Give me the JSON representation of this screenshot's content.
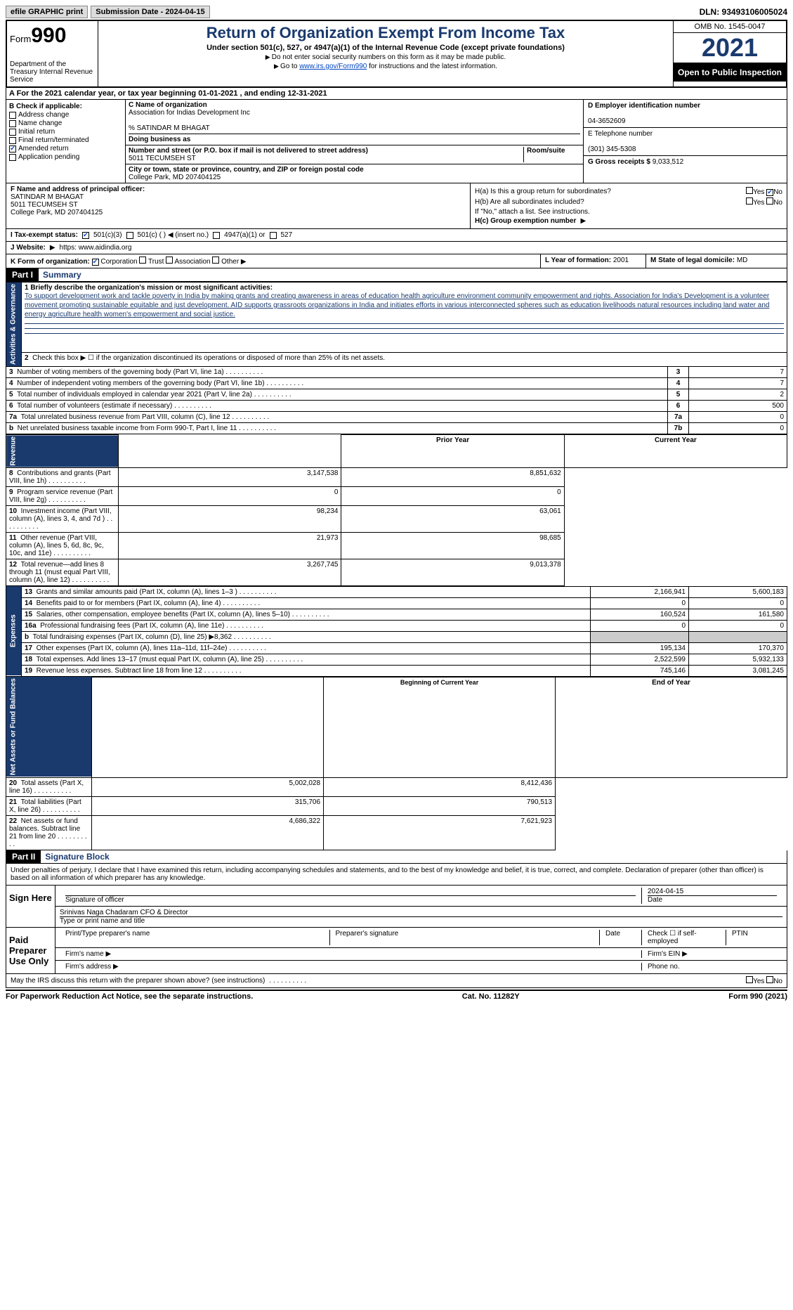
{
  "topbar": {
    "efile": "efile GRAPHIC print",
    "submission": "Submission Date - 2024-04-15",
    "dln": "DLN: 93493106005024"
  },
  "header": {
    "form_label": "Form",
    "form_no": "990",
    "dept": "Department of the Treasury Internal Revenue Service",
    "title": "Return of Organization Exempt From Income Tax",
    "sub": "Under section 501(c), 527, or 4947(a)(1) of the Internal Revenue Code (except private foundations)",
    "note1": "Do not enter social security numbers on this form as it may be made public.",
    "note2_pre": "Go to ",
    "note2_link": "www.irs.gov/Form990",
    "note2_post": " for instructions and the latest information.",
    "omb": "OMB No. 1545-0047",
    "year": "2021",
    "open": "Open to Public Inspection"
  },
  "row_a": "A For the 2021 calendar year, or tax year beginning 01-01-2021  , and ending 12-31-2021",
  "section_b": {
    "label": "B Check if applicable:",
    "items": [
      "Address change",
      "Name change",
      "Initial return",
      "Final return/terminated",
      "Amended return",
      "Application pending"
    ],
    "checked_idx": 4
  },
  "section_c": {
    "name_label": "C Name of organization",
    "name": "Association for Indias Development Inc",
    "care_of": "% SATINDAR M BHAGAT",
    "dba_label": "Doing business as",
    "street_label": "Number and street (or P.O. box if mail is not delivered to street address)",
    "room_label": "Room/suite",
    "street": "5011 TECUMSEH ST",
    "city_label": "City or town, state or province, country, and ZIP or foreign postal code",
    "city": "College Park, MD  207404125"
  },
  "section_d": {
    "ein_label": "D Employer identification number",
    "ein": "04-3652609",
    "tel_label": "E Telephone number",
    "tel": "(301) 345-5308",
    "gross_label": "G Gross receipts $",
    "gross": "9,033,512"
  },
  "section_f": {
    "label": "F  Name and address of principal officer:",
    "name": "SATINDAR M BHAGAT",
    "addr1": "5011 TECUMSEH ST",
    "addr2": "College Park, MD  207404125"
  },
  "section_h": {
    "ha": "H(a)  Is this a group return for subordinates?",
    "ha_yes": "Yes",
    "ha_no": "No",
    "hb": "H(b)  Are all subordinates included?",
    "hb_note": "If \"No,\" attach a list. See instructions.",
    "hc": "H(c)  Group exemption number"
  },
  "section_i": {
    "label": "I  Tax-exempt status:",
    "opts": [
      "501(c)(3)",
      "501(c) (  ) ◀ (insert no.)",
      "4947(a)(1) or",
      "527"
    ]
  },
  "section_j": {
    "label": "J  Website:",
    "val": "https: www.aidindia.org"
  },
  "section_k": {
    "label": "K Form of organization:",
    "opts": [
      "Corporation",
      "Trust",
      "Association",
      "Other"
    ]
  },
  "section_l": {
    "label": "L Year of formation:",
    "val": "2001"
  },
  "section_m": {
    "label": "M State of legal domicile:",
    "val": "MD"
  },
  "part1": {
    "hdr": "Part I",
    "title": "Summary",
    "line1_label": "1 Briefly describe the organization's mission or most significant activities:",
    "mission": "To support development work and tackle poverty in India by making grants and creating awareness in areas of education health agriculture environment community empowerment and rights. Association for India's Development is a volunteer movement promoting sustainable equitable and just development. AID supports grassroots organizations in India and initiates efforts in various interconnected spheres such as education livelihoods natural resources including land water and energy agriculture health women's empowerment and social justice.",
    "side_ag": "Activities & Governance",
    "line2": "Check this box ▶ ☐  if the organization discontinued its operations or disposed of more than 25% of its net assets.",
    "rows_ag": [
      {
        "n": "3",
        "t": "Number of voting members of the governing body (Part VI, line 1a)",
        "b": "3",
        "v": "7"
      },
      {
        "n": "4",
        "t": "Number of independent voting members of the governing body (Part VI, line 1b)",
        "b": "4",
        "v": "7"
      },
      {
        "n": "5",
        "t": "Total number of individuals employed in calendar year 2021 (Part V, line 2a)",
        "b": "5",
        "v": "2"
      },
      {
        "n": "6",
        "t": "Total number of volunteers (estimate if necessary)",
        "b": "6",
        "v": "500"
      },
      {
        "n": "7a",
        "t": "Total unrelated business revenue from Part VIII, column (C), line 12",
        "b": "7a",
        "v": "0"
      },
      {
        "n": "b",
        "t": "Net unrelated business taxable income from Form 990-T, Part I, line 11",
        "b": "7b",
        "v": "0"
      }
    ],
    "side_rev": "Revenue",
    "col_py": "Prior Year",
    "col_cy": "Current Year",
    "rows_rev": [
      {
        "n": "8",
        "t": "Contributions and grants (Part VIII, line 1h)",
        "py": "3,147,538",
        "cy": "8,851,632"
      },
      {
        "n": "9",
        "t": "Program service revenue (Part VIII, line 2g)",
        "py": "0",
        "cy": "0"
      },
      {
        "n": "10",
        "t": "Investment income (Part VIII, column (A), lines 3, 4, and 7d )",
        "py": "98,234",
        "cy": "63,061"
      },
      {
        "n": "11",
        "t": "Other revenue (Part VIII, column (A), lines 5, 6d, 8c, 9c, 10c, and 11e)",
        "py": "21,973",
        "cy": "98,685"
      },
      {
        "n": "12",
        "t": "Total revenue—add lines 8 through 11 (must equal Part VIII, column (A), line 12)",
        "py": "3,267,745",
        "cy": "9,013,378"
      }
    ],
    "side_exp": "Expenses",
    "rows_exp": [
      {
        "n": "13",
        "t": "Grants and similar amounts paid (Part IX, column (A), lines 1–3 )",
        "py": "2,166,941",
        "cy": "5,600,183"
      },
      {
        "n": "14",
        "t": "Benefits paid to or for members (Part IX, column (A), line 4)",
        "py": "0",
        "cy": "0"
      },
      {
        "n": "15",
        "t": "Salaries, other compensation, employee benefits (Part IX, column (A), lines 5–10)",
        "py": "160,524",
        "cy": "161,580"
      },
      {
        "n": "16a",
        "t": "Professional fundraising fees (Part IX, column (A), line 11e)",
        "py": "0",
        "cy": "0"
      },
      {
        "n": "b",
        "t": "Total fundraising expenses (Part IX, column (D), line 25) ▶8,362",
        "py": "",
        "cy": "",
        "gray": true
      },
      {
        "n": "17",
        "t": "Other expenses (Part IX, column (A), lines 11a–11d, 11f–24e)",
        "py": "195,134",
        "cy": "170,370"
      },
      {
        "n": "18",
        "t": "Total expenses. Add lines 13–17 (must equal Part IX, column (A), line 25)",
        "py": "2,522,599",
        "cy": "5,932,133"
      },
      {
        "n": "19",
        "t": "Revenue less expenses. Subtract line 18 from line 12",
        "py": "745,146",
        "cy": "3,081,245"
      }
    ],
    "side_na": "Net Assets or Fund Balances",
    "col_boy": "Beginning of Current Year",
    "col_eoy": "End of Year",
    "rows_na": [
      {
        "n": "20",
        "t": "Total assets (Part X, line 16)",
        "py": "5,002,028",
        "cy": "8,412,436"
      },
      {
        "n": "21",
        "t": "Total liabilities (Part X, line 26)",
        "py": "315,706",
        "cy": "790,513"
      },
      {
        "n": "22",
        "t": "Net assets or fund balances. Subtract line 21 from line 20",
        "py": "4,686,322",
        "cy": "7,621,923"
      }
    ]
  },
  "part2": {
    "hdr": "Part II",
    "title": "Signature Block",
    "decl": "Under penalties of perjury, I declare that I have examined this return, including accompanying schedules and statements, and to the best of my knowledge and belief, it is true, correct, and complete. Declaration of preparer (other than officer) is based on all information of which preparer has any knowledge.",
    "sign_here": "Sign Here",
    "sig_officer": "Signature of officer",
    "sig_date": "2024-04-15",
    "date_label": "Date",
    "officer_name": "Srinivas Naga Chadaram CFO & Director",
    "type_name": "Type or print name and title",
    "paid": "Paid Preparer Use Only",
    "prep_name": "Print/Type preparer's name",
    "prep_sig": "Preparer's signature",
    "prep_date": "Date",
    "check_self": "Check ☐ if self-employed",
    "ptin": "PTIN",
    "firm_name": "Firm's name  ▶",
    "firm_ein": "Firm's EIN ▶",
    "firm_addr": "Firm's address ▶",
    "phone": "Phone no.",
    "may_irs": "May the IRS discuss this return with the preparer shown above? (see instructions)",
    "yes": "Yes",
    "no": "No"
  },
  "footer": {
    "left": "For Paperwork Reduction Act Notice, see the separate instructions.",
    "mid": "Cat. No. 11282Y",
    "right": "Form 990 (2021)"
  }
}
